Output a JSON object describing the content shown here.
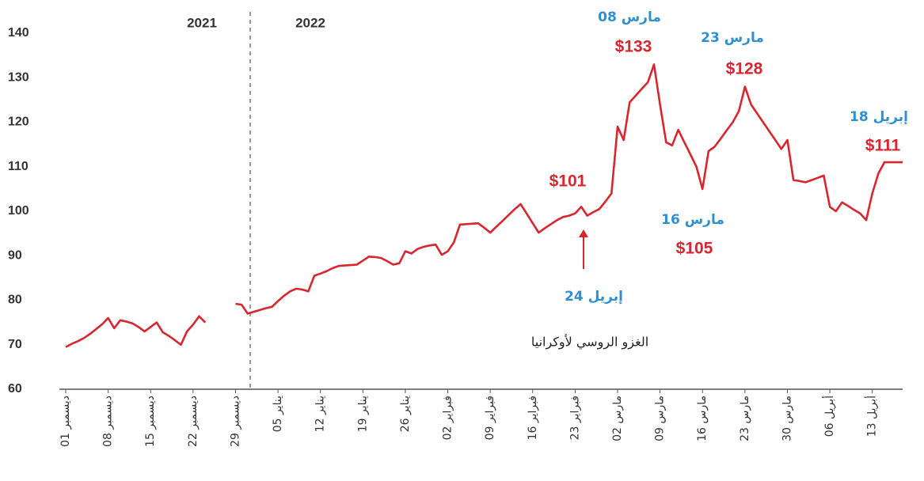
{
  "chart_data": {
    "type": "line",
    "categories": [
      "01 ديسمبر",
      null,
      null,
      null,
      null,
      null,
      null,
      "08 ديسمبر",
      null,
      null,
      null,
      null,
      null,
      null,
      "15 ديسمبر",
      null,
      null,
      null,
      null,
      null,
      null,
      "22 ديسمبر",
      null,
      null,
      null,
      null,
      null,
      null,
      "29 ديسمبر",
      null,
      null,
      null,
      null,
      null,
      null,
      "05 يناير",
      null,
      null,
      null,
      null,
      null,
      null,
      "12 يناير",
      null,
      null,
      null,
      null,
      null,
      null,
      "19 يناير",
      null,
      null,
      null,
      null,
      null,
      null,
      "26 يناير",
      null,
      null,
      null,
      null,
      null,
      null,
      "02 فبراير",
      null,
      null,
      null,
      null,
      null,
      null,
      "09 فبراير",
      null,
      null,
      null,
      null,
      null,
      null,
      "16 فبراير",
      null,
      null,
      null,
      null,
      null,
      null,
      "23 فبراير",
      null,
      null,
      null,
      null,
      null,
      null,
      "02 مارس",
      null,
      null,
      null,
      null,
      null,
      null,
      "09 مارس",
      null,
      null,
      null,
      null,
      null,
      null,
      "16 مارس",
      null,
      null,
      null,
      null,
      null,
      null,
      "23 مارس",
      null,
      null,
      null,
      null,
      null,
      null,
      "30 مارس",
      null,
      null,
      null,
      null,
      null,
      null,
      "06 أبريل",
      null,
      null,
      null,
      null,
      null,
      null,
      "13 أبريل",
      null,
      null,
      null,
      null,
      null
    ],
    "series": [
      {
        "name": null,
        "color": "#d8262e",
        "values": [
          69.5,
          70.2,
          70.8,
          71.5,
          72.4,
          73.5,
          74.6,
          76,
          73.7,
          75.5,
          75.2,
          74.8,
          74,
          73,
          74,
          75,
          72.8,
          72,
          71,
          70,
          73,
          74.5,
          76.4,
          75,
          null,
          null,
          null,
          null,
          79.2,
          79,
          77,
          77.4,
          77.8,
          78.2,
          78.5,
          79.8,
          81,
          82,
          82.6,
          82.4,
          82,
          85.5,
          86,
          86.5,
          87.2,
          87.7,
          87.8,
          87.9,
          88,
          88.9,
          89.8,
          89.7,
          89.5,
          88.8,
          88,
          88.3,
          91,
          90.5,
          91.5,
          92,
          92.3,
          92.5,
          90.2,
          91,
          93,
          97,
          97.1,
          97.2,
          97.3,
          96.3,
          95.2,
          96.5,
          97.8,
          99.1,
          100.4,
          101.6,
          99.5,
          97.3,
          95.2,
          96.2,
          97.1,
          98,
          98.7,
          99,
          99.5,
          101,
          99,
          99.8,
          100.5,
          102.2,
          104,
          119,
          116,
          124.5,
          126,
          127.5,
          129,
          133,
          124,
          115.5,
          114.8,
          118.3,
          115.5,
          112.8,
          110,
          105,
          113.5,
          114.5,
          116.3,
          118.2,
          120,
          122.5,
          128,
          124,
          122,
          120,
          118,
          116,
          114,
          116,
          107,
          106.8,
          106.5,
          107,
          107.5,
          108,
          101,
          100,
          102,
          101.2,
          100.3,
          99.5,
          98,
          104,
          108.5,
          111,
          111,
          111,
          111
        ]
      }
    ],
    "ylim": [
      60,
      140
    ],
    "yticks": [
      60,
      70,
      80,
      90,
      100,
      110,
      120,
      130,
      140
    ],
    "grid": false,
    "annotations": [
      "2021",
      "2022",
      "08 مارس",
      "$133",
      "23 مارس",
      "$128",
      "18 إبريل",
      "$111",
      "$101",
      "16 مارس",
      "$105",
      "24 إبريل",
      "الغزو الروسي لأوكرانيا"
    ]
  }
}
